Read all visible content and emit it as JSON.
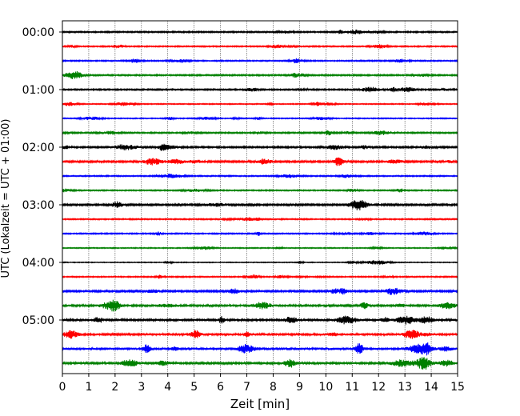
{
  "chart_data": {
    "type": "line",
    "title": "",
    "xlabel": "Zeit  [min]",
    "ylabel": "UTC (Lokalzeit = UTC + 01:00)",
    "xlim": [
      0,
      15
    ],
    "x_ticks": [
      "0",
      "1",
      "2",
      "3",
      "4",
      "5",
      "6",
      "7",
      "8",
      "9",
      "10",
      "11",
      "12",
      "13",
      "14",
      "15"
    ],
    "y_ticks": [
      "00:00",
      "01:00",
      "02:00",
      "03:00",
      "04:00",
      "05:00"
    ],
    "trace_interval_min": 15,
    "trace_count": 24,
    "grid": "vertical dotted",
    "trace_colors": [
      "#000000",
      "#ff0000",
      "#0000ff",
      "#008000"
    ],
    "series": [
      {
        "start": "00:00",
        "amplitude": 0.35
      },
      {
        "start": "00:15",
        "amplitude": 0.3
      },
      {
        "start": "00:30",
        "amplitude": 0.3
      },
      {
        "start": "00:45",
        "amplitude": 0.35
      },
      {
        "start": "01:00",
        "amplitude": 0.35
      },
      {
        "start": "01:15",
        "amplitude": 0.25
      },
      {
        "start": "01:30",
        "amplitude": 0.25
      },
      {
        "start": "01:45",
        "amplitude": 0.35
      },
      {
        "start": "02:00",
        "amplitude": 0.4
      },
      {
        "start": "02:15",
        "amplitude": 0.45
      },
      {
        "start": "02:30",
        "amplitude": 0.3
      },
      {
        "start": "02:45",
        "amplitude": 0.3
      },
      {
        "start": "03:00",
        "amplitude": 0.45
      },
      {
        "start": "03:15",
        "amplitude": 0.3
      },
      {
        "start": "03:30",
        "amplitude": 0.3
      },
      {
        "start": "03:45",
        "amplitude": 0.25
      },
      {
        "start": "04:00",
        "amplitude": 0.2
      },
      {
        "start": "04:15",
        "amplitude": 0.3
      },
      {
        "start": "04:30",
        "amplitude": 0.45
      },
      {
        "start": "04:45",
        "amplitude": 0.55
      },
      {
        "start": "05:00",
        "amplitude": 0.55
      },
      {
        "start": "05:15",
        "amplitude": 0.6
      },
      {
        "start": "05:30",
        "amplitude": 0.65
      },
      {
        "start": "05:45",
        "amplitude": 0.55
      }
    ]
  }
}
